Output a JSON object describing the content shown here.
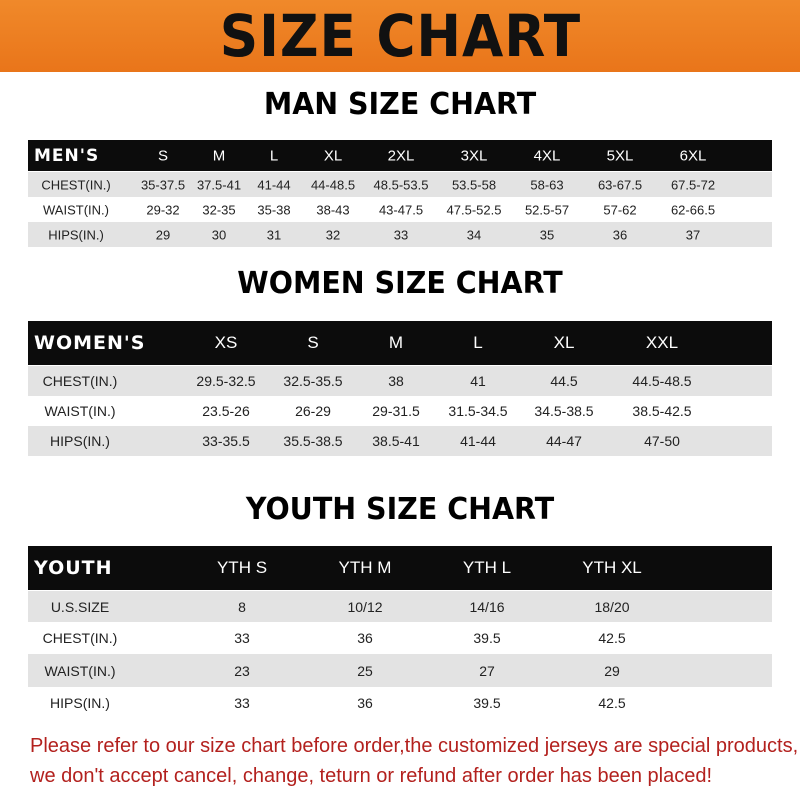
{
  "banner": {
    "title": "SIZE CHART",
    "color": "#ee8023"
  },
  "men": {
    "title": "MAN SIZE CHART",
    "header": [
      "MEN'S",
      "S",
      "M",
      "L",
      "XL",
      "2XL",
      "3XL",
      "4XL",
      "5XL",
      "6XL"
    ],
    "rows": [
      [
        "CHEST(IN.)",
        "35-37.5",
        "37.5-41",
        "41-44",
        "44-48.5",
        "48.5-53.5",
        "53.5-58",
        "58-63",
        "63-67.5",
        "67.5-72"
      ],
      [
        "WAIST(IN.)",
        "29-32",
        "32-35",
        "35-38",
        "38-43",
        "43-47.5",
        "47.5-52.5",
        "52.5-57",
        "57-62",
        "62-66.5"
      ],
      [
        "HIPS(IN.)",
        "29",
        "30",
        "31",
        "32",
        "33",
        "34",
        "35",
        "36",
        "37"
      ]
    ]
  },
  "women": {
    "title": "WOMEN SIZE CHART",
    "header": [
      "WOMEN'S",
      "XS",
      "S",
      "M",
      "L",
      "XL",
      "XXL"
    ],
    "rows": [
      [
        "CHEST(IN.)",
        "29.5-32.5",
        "32.5-35.5",
        "38",
        "41",
        "44.5",
        "44.5-48.5"
      ],
      [
        "WAIST(IN.)",
        "23.5-26",
        "26-29",
        "29-31.5",
        "31.5-34.5",
        "34.5-38.5",
        "38.5-42.5"
      ],
      [
        "HIPS(IN.)",
        "33-35.5",
        "35.5-38.5",
        "38.5-41",
        "41-44",
        "44-47",
        "47-50"
      ]
    ]
  },
  "youth": {
    "title": "YOUTH SIZE CHART",
    "header": [
      "YOUTH",
      "YTH S",
      "YTH M",
      "YTH L",
      "YTH XL"
    ],
    "rows": [
      [
        "U.S.SIZE",
        "8",
        "10/12",
        "14/16",
        "18/20"
      ],
      [
        "CHEST(IN.)",
        "33",
        "36",
        "39.5",
        "42.5"
      ],
      [
        "WAIST(IN.)",
        "23",
        "25",
        "27",
        "29"
      ],
      [
        "HIPS(IN.)",
        "33",
        "36",
        "39.5",
        "42.5"
      ]
    ]
  },
  "notice": {
    "line1": "Please refer to our size chart before order,the customized jerseys are special products,",
    "line2": "we don't accept cancel, change, teturn or refund after order has been placed!",
    "color": "#b3211e"
  }
}
